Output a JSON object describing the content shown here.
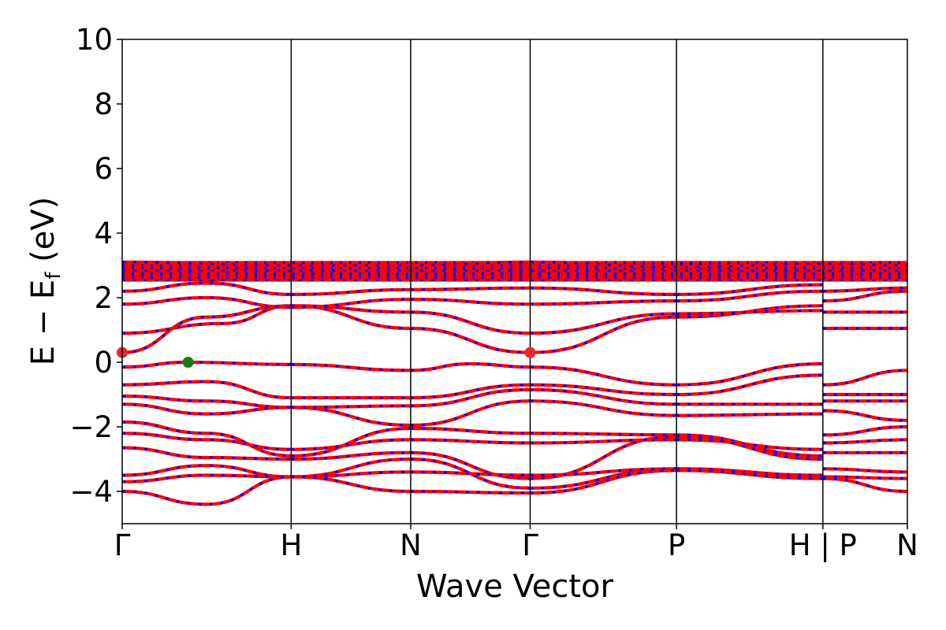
{
  "chart_data": {
    "type": "line",
    "title": "",
    "xlabel": "Wave Vector",
    "ylabel_main": "E − E",
    "ylabel_sub": "f",
    "ylabel_tail": " (eV)",
    "ylim": [
      -5,
      10
    ],
    "yticks": [
      -4,
      -2,
      0,
      2,
      4,
      6,
      8,
      10
    ],
    "ytick_labels": [
      "−4",
      "−2",
      "0",
      "2",
      "4",
      "6",
      "8",
      "10"
    ],
    "kpath_labels": [
      {
        "label": "Γ",
        "k": 0
      },
      {
        "label": "H",
        "k": 1
      },
      {
        "label": "N",
        "k": 1.707
      },
      {
        "label": "Γ",
        "k": 2.414
      },
      {
        "label": "P",
        "k": 3.28
      },
      {
        "label": "H | P",
        "k": 4.146
      },
      {
        "label": "N",
        "k": 4.646
      }
    ],
    "colors": {
      "spin_up": "#ff0000",
      "spin_down": "#0000ff",
      "cbm": "#e8292b",
      "vbm": "#1b7a1b",
      "axis": "#000000"
    },
    "band_edges": {
      "cbm": [
        {
          "k": 0,
          "energy": 0.3
        },
        {
          "k": 2.414,
          "energy": 0.3
        }
      ],
      "vbm": [
        {
          "k": 0.39,
          "energy": 0.0
        }
      ]
    },
    "series": [
      {
        "style": "band",
        "k": [
          0,
          0.39,
          1
        ],
        "energy": [
          -0.15,
          0.0,
          -0.07
        ]
      },
      {
        "style": "band",
        "k": [
          1,
          1.707
        ],
        "energy": [
          -0.07,
          -0.25
        ]
      },
      {
        "style": "band",
        "k": [
          1.707,
          2.06,
          2.414
        ],
        "energy": [
          -0.25,
          -0.05,
          -0.15
        ]
      },
      {
        "style": "band",
        "k": [
          2.414,
          3.28
        ],
        "energy": [
          -0.15,
          -0.7
        ]
      },
      {
        "style": "band",
        "k": [
          3.28,
          4.146
        ],
        "energy": [
          -0.7,
          -0.05
        ]
      },
      {
        "style": "band",
        "k": [
          4.146,
          4.646
        ],
        "energy": [
          -0.7,
          -0.25
        ]
      },
      {
        "style": "band",
        "k": [
          0,
          0.5,
          1
        ],
        "energy": [
          0.3,
          1.4,
          1.75
        ]
      },
      {
        "style": "band",
        "k": [
          1,
          1.707
        ],
        "energy": [
          1.75,
          1.05
        ]
      },
      {
        "style": "band",
        "k": [
          1.707,
          2.414
        ],
        "energy": [
          1.05,
          0.3
        ]
      },
      {
        "style": "band",
        "k": [
          2.414,
          3.28
        ],
        "energy": [
          0.3,
          1.4
        ]
      },
      {
        "style": "band",
        "k": [
          3.28,
          4.146
        ],
        "energy": [
          1.4,
          1.75
        ]
      },
      {
        "style": "band",
        "k": [
          4.146,
          4.646
        ],
        "energy": [
          1.05,
          1.05
        ]
      },
      {
        "style": "band",
        "k": [
          0,
          0.6,
          1
        ],
        "energy": [
          0.9,
          1.2,
          1.75
        ]
      },
      {
        "style": "band",
        "k": [
          1,
          1.707
        ],
        "energy": [
          1.75,
          1.55
        ]
      },
      {
        "style": "band",
        "k": [
          1.707,
          2.414
        ],
        "energy": [
          1.55,
          0.9
        ]
      },
      {
        "style": "band",
        "k": [
          2.414,
          3.28
        ],
        "energy": [
          0.9,
          1.5
        ]
      },
      {
        "style": "band",
        "k": [
          3.28,
          4.146
        ],
        "energy": [
          1.5,
          1.6
        ]
      },
      {
        "style": "band",
        "k": [
          4.146,
          4.646
        ],
        "energy": [
          1.55,
          1.55
        ]
      },
      {
        "style": "band",
        "k": [
          0,
          0.5,
          1
        ],
        "energy": [
          1.8,
          2.0,
          1.7
        ]
      },
      {
        "style": "band",
        "k": [
          1,
          1.707
        ],
        "energy": [
          1.7,
          1.95
        ]
      },
      {
        "style": "band",
        "k": [
          1.707,
          2.414
        ],
        "energy": [
          1.95,
          1.8
        ]
      },
      {
        "style": "band",
        "k": [
          2.414,
          3.28
        ],
        "energy": [
          1.8,
          1.9
        ]
      },
      {
        "style": "band",
        "k": [
          3.28,
          4.146
        ],
        "energy": [
          1.9,
          2.2
        ]
      },
      {
        "style": "band",
        "k": [
          4.146,
          4.646
        ],
        "energy": [
          1.9,
          2.2
        ]
      },
      {
        "style": "band",
        "k": [
          0,
          0.5,
          1
        ],
        "energy": [
          2.2,
          2.45,
          2.1
        ]
      },
      {
        "style": "band",
        "k": [
          1,
          1.707
        ],
        "energy": [
          2.1,
          2.25
        ]
      },
      {
        "style": "band",
        "k": [
          1.707,
          2.414
        ],
        "energy": [
          2.25,
          2.3
        ]
      },
      {
        "style": "band",
        "k": [
          2.414,
          3.28
        ],
        "energy": [
          2.3,
          2.1
        ]
      },
      {
        "style": "band",
        "k": [
          3.28,
          4.146
        ],
        "energy": [
          2.1,
          2.4
        ]
      },
      {
        "style": "band",
        "k": [
          4.146,
          4.646
        ],
        "energy": [
          2.2,
          2.3
        ]
      },
      {
        "style": "band",
        "k": [
          0,
          0.5,
          1
        ],
        "energy": [
          -0.7,
          -0.6,
          -1.1
        ]
      },
      {
        "style": "band",
        "k": [
          1,
          1.707
        ],
        "energy": [
          -1.1,
          -1.1
        ]
      },
      {
        "style": "band",
        "k": [
          1.707,
          2.414
        ],
        "energy": [
          -1.1,
          -0.7
        ]
      },
      {
        "style": "band",
        "k": [
          2.414,
          3.28
        ],
        "energy": [
          -0.7,
          -1.0
        ]
      },
      {
        "style": "band",
        "k": [
          3.28,
          4.146
        ],
        "energy": [
          -1.0,
          -0.4
        ]
      },
      {
        "style": "band",
        "k": [
          4.146,
          4.646
        ],
        "energy": [
          -1.0,
          -1.0
        ]
      },
      {
        "style": "band",
        "k": [
          0,
          0.5,
          1
        ],
        "energy": [
          -1.05,
          -1.2,
          -1.4
        ]
      },
      {
        "style": "band",
        "k": [
          1,
          1.707
        ],
        "energy": [
          -1.4,
          -1.35
        ]
      },
      {
        "style": "band",
        "k": [
          1.707,
          2.414
        ],
        "energy": [
          -1.35,
          -0.85
        ]
      },
      {
        "style": "band",
        "k": [
          2.414,
          3.28
        ],
        "energy": [
          -0.85,
          -1.3
        ]
      },
      {
        "style": "band",
        "k": [
          3.28,
          4.146
        ],
        "energy": [
          -1.3,
          -1.3
        ]
      },
      {
        "style": "band",
        "k": [
          4.146,
          4.646
        ],
        "energy": [
          -1.2,
          -1.2
        ]
      },
      {
        "style": "band",
        "k": [
          0,
          0.5,
          1
        ],
        "energy": [
          -1.3,
          -1.6,
          -1.4
        ]
      },
      {
        "style": "band",
        "k": [
          1,
          1.707
        ],
        "energy": [
          -1.4,
          -1.95
        ]
      },
      {
        "style": "band",
        "k": [
          1.707,
          2.414
        ],
        "energy": [
          -1.95,
          -1.2
        ]
      },
      {
        "style": "band",
        "k": [
          2.414,
          3.28
        ],
        "energy": [
          -1.2,
          -1.65
        ]
      },
      {
        "style": "band",
        "k": [
          3.28,
          4.146
        ],
        "energy": [
          -1.65,
          -1.6
        ]
      },
      {
        "style": "band",
        "k": [
          4.146,
          4.646
        ],
        "energy": [
          -1.5,
          -1.8
        ]
      },
      {
        "style": "band",
        "k": [
          0,
          0.5,
          1
        ],
        "energy": [
          -1.85,
          -2.2,
          -2.9
        ]
      },
      {
        "style": "band",
        "k": [
          1,
          1.707
        ],
        "energy": [
          -2.9,
          -2.05
        ]
      },
      {
        "style": "band",
        "k": [
          1.707,
          2.414
        ],
        "energy": [
          -2.05,
          -2.2
        ]
      },
      {
        "style": "band",
        "k": [
          2.414,
          3.28
        ],
        "energy": [
          -2.2,
          -2.25
        ]
      },
      {
        "style": "band",
        "k": [
          3.28,
          4.146
        ],
        "energy": [
          -2.25,
          -2.9
        ]
      },
      {
        "style": "band",
        "k": [
          4.146,
          4.646
        ],
        "energy": [
          -2.25,
          -2.0
        ]
      },
      {
        "style": "band",
        "k": [
          0,
          0.5,
          1
        ],
        "energy": [
          -2.2,
          -2.4,
          -2.7
        ]
      },
      {
        "style": "band",
        "k": [
          1,
          1.707
        ],
        "energy": [
          -2.7,
          -2.4
        ]
      },
      {
        "style": "band",
        "k": [
          1.707,
          2.414
        ],
        "energy": [
          -2.4,
          -2.5
        ]
      },
      {
        "style": "band",
        "k": [
          2.414,
          3.28
        ],
        "energy": [
          -2.5,
          -2.4
        ]
      },
      {
        "style": "band",
        "k": [
          3.28,
          4.146
        ],
        "energy": [
          -2.4,
          -2.7
        ]
      },
      {
        "style": "band",
        "k": [
          4.146,
          4.646
        ],
        "energy": [
          -2.5,
          -2.4
        ]
      },
      {
        "style": "band",
        "k": [
          0,
          0.5,
          1
        ],
        "energy": [
          -2.65,
          -2.95,
          -3.0
        ]
      },
      {
        "style": "band",
        "k": [
          1,
          1.707
        ],
        "energy": [
          -3.0,
          -2.8
        ]
      },
      {
        "style": "band",
        "k": [
          1.707,
          2.414
        ],
        "energy": [
          -2.8,
          -3.6
        ]
      },
      {
        "style": "band",
        "k": [
          2.414,
          3.28
        ],
        "energy": [
          -3.6,
          -2.3
        ]
      },
      {
        "style": "band",
        "k": [
          3.28,
          4.146
        ],
        "energy": [
          -2.3,
          -3.0
        ]
      },
      {
        "style": "band",
        "k": [
          4.146,
          4.646
        ],
        "energy": [
          -2.8,
          -2.8
        ]
      },
      {
        "style": "band",
        "k": [
          0,
          0.5,
          1
        ],
        "energy": [
          -3.5,
          -3.2,
          -3.55
        ]
      },
      {
        "style": "band",
        "k": [
          1,
          1.707
        ],
        "energy": [
          -3.55,
          -3.0
        ]
      },
      {
        "style": "band",
        "k": [
          1.707,
          2.414
        ],
        "energy": [
          -3.0,
          -3.9
        ]
      },
      {
        "style": "band",
        "k": [
          2.414,
          3.28
        ],
        "energy": [
          -3.9,
          -3.3
        ]
      },
      {
        "style": "band",
        "k": [
          3.28,
          4.146
        ],
        "energy": [
          -3.3,
          -3.5
        ]
      },
      {
        "style": "band",
        "k": [
          4.146,
          4.646
        ],
        "energy": [
          -3.3,
          -3.4
        ]
      },
      {
        "style": "band",
        "k": [
          0,
          0.5,
          1
        ],
        "energy": [
          -3.7,
          -3.5,
          -3.55
        ]
      },
      {
        "style": "band",
        "k": [
          1,
          1.707
        ],
        "energy": [
          -3.55,
          -3.4
        ]
      },
      {
        "style": "band",
        "k": [
          1.707,
          2.414
        ],
        "energy": [
          -3.4,
          -3.5
        ]
      },
      {
        "style": "band",
        "k": [
          2.414,
          3.28
        ],
        "energy": [
          -3.5,
          -3.3
        ]
      },
      {
        "style": "band",
        "k": [
          3.28,
          4.146
        ],
        "energy": [
          -3.3,
          -3.55
        ]
      },
      {
        "style": "band",
        "k": [
          4.146,
          4.646
        ],
        "energy": [
          -3.55,
          -3.6
        ]
      },
      {
        "style": "band",
        "k": [
          0,
          0.5,
          1
        ],
        "energy": [
          -4.0,
          -4.4,
          -3.55
        ]
      },
      {
        "style": "band",
        "k": [
          1,
          1.707
        ],
        "energy": [
          -3.55,
          -4.0
        ]
      },
      {
        "style": "band",
        "k": [
          1.707,
          2.414
        ],
        "energy": [
          -4.0,
          -4.05
        ]
      },
      {
        "style": "band",
        "k": [
          2.414,
          3.28
        ],
        "energy": [
          -4.05,
          -3.35
        ]
      },
      {
        "style": "band",
        "k": [
          3.28,
          4.146
        ],
        "energy": [
          -3.35,
          -3.6
        ]
      },
      {
        "style": "band",
        "k": [
          4.146,
          4.646
        ],
        "energy": [
          -3.6,
          -4.0
        ]
      },
      {
        "style": "band",
        "k": [
          0,
          1,
          1.707,
          2.414,
          3.28,
          4.146,
          4.646
        ],
        "energy": [
          2.55,
          2.55,
          2.55,
          2.55,
          2.55,
          2.55,
          2.55
        ]
      },
      {
        "style": "dense",
        "k": [
          0,
          1,
          1.707,
          2.414,
          3.28,
          4.146,
          4.646
        ],
        "energy": [
          2.65,
          2.65,
          2.65,
          2.65,
          2.65,
          2.65,
          2.65
        ]
      },
      {
        "style": "dense",
        "k": [
          0,
          1,
          1.707,
          2.414,
          3.28,
          4.146,
          4.646
        ],
        "energy": [
          2.75,
          2.75,
          2.75,
          2.75,
          2.75,
          2.75,
          2.75
        ]
      },
      {
        "style": "band",
        "k": [
          0,
          1,
          1.707,
          2.414,
          3.28,
          4.146,
          4.646
        ],
        "energy": [
          2.85,
          2.85,
          2.85,
          2.85,
          2.85,
          2.85,
          2.85
        ]
      },
      {
        "style": "dense",
        "k": [
          0,
          1,
          1.707,
          2.414,
          3.28,
          4.146,
          4.646
        ],
        "energy": [
          2.95,
          2.95,
          2.95,
          2.95,
          2.95,
          2.95,
          2.95
        ]
      },
      {
        "style": "dense",
        "k": [
          0,
          1,
          1.707,
          2.414,
          3.28,
          4.146,
          4.646
        ],
        "energy": [
          3.05,
          3.05,
          3.05,
          3.05,
          3.05,
          3.05,
          3.05
        ]
      },
      {
        "style": "band",
        "k": [
          0,
          1,
          1.707,
          2.414,
          3.28,
          4.146,
          4.646
        ],
        "energy": [
          3.1,
          3.0,
          3.0,
          3.1,
          2.95,
          3.05,
          3.0
        ]
      }
    ]
  }
}
